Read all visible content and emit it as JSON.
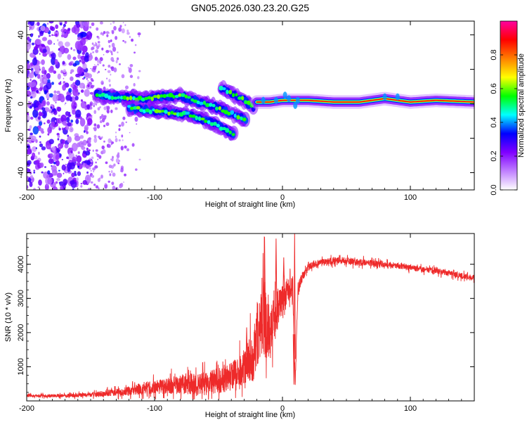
{
  "title": "GN05.2026.030.23.20.G25",
  "chart_data": [
    {
      "type": "heatmap",
      "xlabel": "Height of straight line (km)",
      "ylabel": "Frequency (Hz)",
      "xlim": [
        -200,
        150
      ],
      "ylim": [
        -50,
        48
      ],
      "xticks": [
        -200,
        -100,
        0,
        100
      ],
      "yticks": [
        -40,
        -20,
        0,
        20,
        40
      ],
      "colorbar": {
        "label": "Normalized spectral amplitude",
        "range": [
          0,
          1
        ],
        "ticks": [
          "0.0",
          "0.2",
          "0.4",
          "0.6",
          "0.8"
        ],
        "colors": [
          "#ffffff",
          "#c080ff",
          "#8000ff",
          "#0000ff",
          "#00ffff",
          "#00ff00",
          "#ffff00",
          "#ff8000",
          "#ff0000",
          "#ff00a0"
        ]
      },
      "features": {
        "noise_region_x": [
          -200,
          -150
        ],
        "tracks": [
          {
            "x": [
              -145,
              -130,
              -110,
              -95,
              -80,
              -70,
              -55,
              -45,
              -35,
              -28
            ],
            "y": [
              5,
              4,
              3,
              4,
              5,
              2,
              -1,
              -4,
              -7,
              -10
            ]
          },
          {
            "x": [
              -120,
              -105,
              -90,
              -75,
              -62,
              -52,
              -45,
              -38
            ],
            "y": [
              -2,
              -4,
              -5,
              -6,
              -9,
              -12,
              -15,
              -18
            ]
          },
          {
            "x": [
              -48,
              -40,
              -32,
              -26,
              -22
            ],
            "y": [
              9,
              6,
              3,
              0,
              -3
            ]
          },
          {
            "x": [
              -20,
              -10,
              0,
              20,
              40,
              60,
              80,
              100,
              120,
              150
            ],
            "y": [
              1,
              1,
              2,
              2,
              1,
              1,
              3,
              1,
              2,
              1
            ]
          }
        ]
      }
    },
    {
      "type": "line",
      "xlabel": "Height of straight line (km)",
      "ylabel": "SNR (10 * v/v)",
      "xlim": [
        -200,
        150
      ],
      "ylim": [
        0,
        4900
      ],
      "xticks": [
        -200,
        -100,
        0,
        100
      ],
      "yticks": [
        1000,
        2000,
        3000,
        4000
      ],
      "color": "#ee2a2a",
      "envelope": {
        "x": [
          -200,
          -170,
          -150,
          -130,
          -110,
          -90,
          -70,
          -55,
          -40,
          -30,
          -22,
          -18,
          -15,
          -12,
          -10,
          -5,
          0,
          5,
          8,
          10,
          12,
          15,
          20,
          25,
          30,
          40,
          50,
          60,
          80,
          100,
          120,
          150
        ],
        "mean": [
          150,
          150,
          180,
          250,
          350,
          450,
          500,
          550,
          700,
          900,
          1400,
          2200,
          2600,
          2300,
          2000,
          2600,
          3000,
          3300,
          3400,
          500,
          3200,
          3600,
          3900,
          4000,
          4050,
          4100,
          4100,
          4050,
          4000,
          3900,
          3800,
          3600
        ],
        "amp": [
          60,
          70,
          90,
          150,
          250,
          350,
          450,
          500,
          600,
          800,
          1100,
          1400,
          1800,
          1600,
          1200,
          900,
          700,
          500,
          400,
          100,
          300,
          200,
          150,
          150,
          150,
          150,
          150,
          150,
          130,
          120,
          120,
          120
        ]
      },
      "spikes": [
        {
          "x": -28,
          "y": 2150
        },
        {
          "x": -14,
          "y": 4800
        },
        {
          "x": -5,
          "y": 4750
        },
        {
          "x": 1,
          "y": 4200
        },
        {
          "x": 9,
          "y": 480
        },
        {
          "x": 9.5,
          "y": 4900
        }
      ]
    }
  ]
}
